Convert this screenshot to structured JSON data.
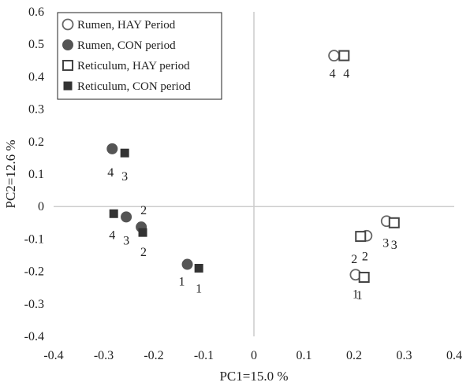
{
  "chart_data": {
    "type": "scatter",
    "xlabel": "PC1=15.0 %",
    "ylabel": "PC2=12.6 %",
    "xlim": [
      -0.4,
      0.4
    ],
    "ylim": [
      -0.4,
      0.6
    ],
    "x_ticks": [
      "-0.4",
      "-0.3",
      "-0.2",
      "-0.1",
      "0",
      "0.1",
      "0.2",
      "0.3",
      "0.4"
    ],
    "y_ticks": [
      "-0.4",
      "-0.3",
      "-0.2",
      "-0.1",
      "0",
      "0.1",
      "0.2",
      "0.3",
      "0.4",
      "0.5",
      "0.6"
    ],
    "grid": false,
    "legend_position": "top-left",
    "colors": {
      "marker": "#666666",
      "filled": "#555555",
      "axis": "#cccccc"
    },
    "series": [
      {
        "name": "Rumen, HAY Period",
        "marker": "circle-open",
        "points": [
          {
            "x": 0.16,
            "y": 0.465,
            "label": "4"
          },
          {
            "x": 0.203,
            "y": -0.21,
            "label": "1"
          },
          {
            "x": 0.225,
            "y": -0.09,
            "label": "2"
          },
          {
            "x": 0.265,
            "y": -0.045,
            "label": "3"
          }
        ]
      },
      {
        "name": "Rumen, CON period",
        "marker": "circle-filled",
        "points": [
          {
            "x": -0.283,
            "y": 0.178,
            "label": "4"
          },
          {
            "x": -0.255,
            "y": -0.032,
            "label": "3"
          },
          {
            "x": -0.225,
            "y": -0.063,
            "label": "2"
          },
          {
            "x": -0.133,
            "y": -0.178,
            "label": "1"
          }
        ]
      },
      {
        "name": "Reticulum, HAY period",
        "marker": "square-open",
        "points": [
          {
            "x": 0.18,
            "y": 0.465,
            "label": "4"
          },
          {
            "x": 0.22,
            "y": -0.218,
            "label": "1"
          },
          {
            "x": 0.213,
            "y": -0.092,
            "label": "2"
          },
          {
            "x": 0.28,
            "y": -0.05,
            "label": "3"
          }
        ]
      },
      {
        "name": "Reticulum, CON period",
        "marker": "square-filled",
        "points": [
          {
            "x": -0.258,
            "y": 0.165,
            "label": "3"
          },
          {
            "x": -0.28,
            "y": -0.022,
            "label": "4"
          },
          {
            "x": -0.222,
            "y": -0.08,
            "label": "2"
          },
          {
            "x": -0.11,
            "y": -0.19,
            "label": "1"
          }
        ]
      }
    ]
  }
}
